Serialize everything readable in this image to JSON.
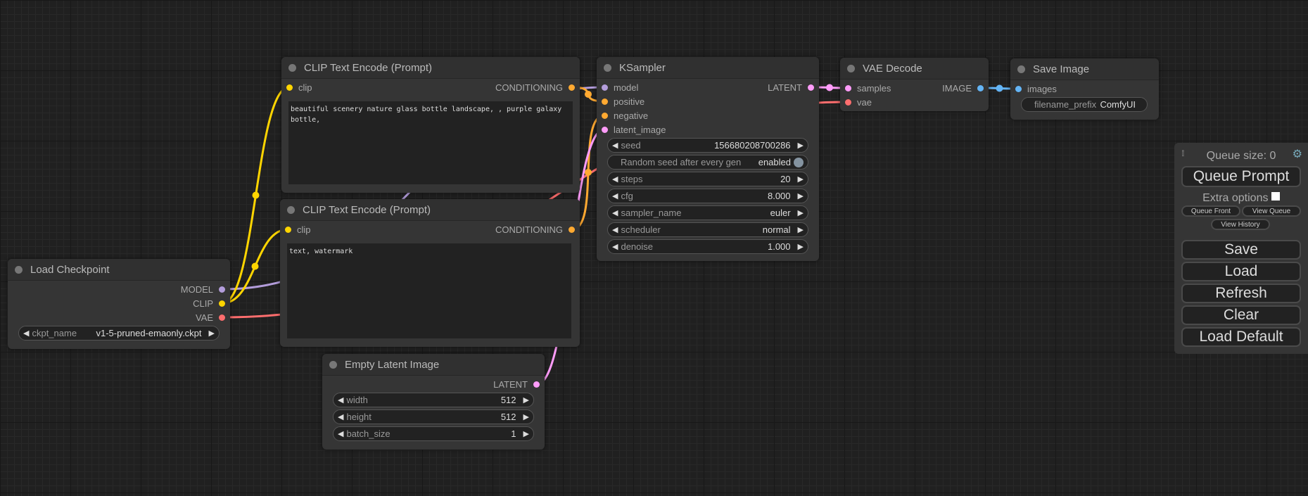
{
  "colors": {
    "MODEL": "#b39ddb",
    "CLIP": "#ffd500",
    "VAE": "#ff6e6e",
    "CONDITIONING": "#ffa931",
    "LATENT": "#ff9cf9",
    "IMAGE": "#64b5f6"
  },
  "nodes": [
    {
      "id": "clip1",
      "title": "CLIP Text Encode (Prompt)",
      "inputs": [
        {
          "name": "clip",
          "type": "CLIP"
        }
      ],
      "outputs": [
        {
          "name": "CONDITIONING",
          "type": "CONDITIONING"
        }
      ],
      "text": "beautiful scenery nature glass bottle landscape, , purple galaxy bottle,"
    },
    {
      "id": "clip2",
      "title": "CLIP Text Encode (Prompt)",
      "inputs": [
        {
          "name": "clip",
          "type": "CLIP"
        }
      ],
      "outputs": [
        {
          "name": "CONDITIONING",
          "type": "CONDITIONING"
        }
      ],
      "text": "text, watermark"
    },
    {
      "id": "ckpt",
      "title": "Load Checkpoint",
      "inputs": [],
      "outputs": [
        {
          "name": "MODEL",
          "type": "MODEL"
        },
        {
          "name": "CLIP",
          "type": "CLIP"
        },
        {
          "name": "VAE",
          "type": "VAE"
        }
      ],
      "widgets": [
        {
          "label": "ckpt_name",
          "value": "v1-5-pruned-emaonly.ckpt"
        }
      ]
    },
    {
      "id": "latent",
      "title": "Empty Latent Image",
      "inputs": [],
      "outputs": [
        {
          "name": "LATENT",
          "type": "LATENT"
        }
      ],
      "widgets": [
        {
          "label": "width",
          "value": "512"
        },
        {
          "label": "height",
          "value": "512"
        },
        {
          "label": "batch_size",
          "value": "1"
        }
      ]
    },
    {
      "id": "ksampler",
      "title": "KSampler",
      "inputs": [
        {
          "name": "model",
          "type": "MODEL"
        },
        {
          "name": "positive",
          "type": "CONDITIONING"
        },
        {
          "name": "negative",
          "type": "CONDITIONING"
        },
        {
          "name": "latent_image",
          "type": "LATENT"
        }
      ],
      "outputs": [
        {
          "name": "LATENT",
          "type": "LATENT"
        }
      ],
      "widgets": [
        {
          "label": "seed",
          "value": "156680208700286"
        },
        {
          "label": "Random seed after every gen",
          "value": "enabled",
          "toggle": true
        },
        {
          "label": "steps",
          "value": "20"
        },
        {
          "label": "cfg",
          "value": "8.000"
        },
        {
          "label": "sampler_name",
          "value": "euler"
        },
        {
          "label": "scheduler",
          "value": "normal"
        },
        {
          "label": "denoise",
          "value": "1.000"
        }
      ]
    },
    {
      "id": "vae",
      "title": "VAE Decode",
      "inputs": [
        {
          "name": "samples",
          "type": "LATENT"
        },
        {
          "name": "vae",
          "type": "VAE"
        }
      ],
      "outputs": [
        {
          "name": "IMAGE",
          "type": "IMAGE"
        }
      ]
    },
    {
      "id": "save",
      "title": "Save Image",
      "inputs": [
        {
          "name": "images",
          "type": "IMAGE"
        }
      ],
      "outputs": [],
      "widgets": [
        {
          "label": "filename_prefix",
          "value": "ComfyUI",
          "plain": true
        }
      ]
    }
  ],
  "links": [
    [
      "ckpt",
      0,
      "ksampler",
      0
    ],
    [
      "ckpt",
      1,
      "clip1",
      0
    ],
    [
      "ckpt",
      1,
      "clip2",
      0
    ],
    [
      "ckpt",
      2,
      "vae",
      1
    ],
    [
      "clip1",
      0,
      "ksampler",
      1
    ],
    [
      "clip2",
      0,
      "ksampler",
      2
    ],
    [
      "latent",
      0,
      "ksampler",
      3
    ],
    [
      "ksampler",
      0,
      "vae",
      0
    ],
    [
      "vae",
      0,
      "save",
      0
    ]
  ],
  "panel": {
    "queue_size": "Queue size: 0",
    "queue_prompt": "Queue Prompt",
    "extra_options": "Extra options",
    "queue_front": "Queue Front",
    "view_queue": "View Queue",
    "view_history": "View History",
    "save": "Save",
    "load": "Load",
    "refresh": "Refresh",
    "clear": "Clear",
    "load_default": "Load Default",
    "settings_icon": "gear-icon",
    "drag_icon": "drag-handle-icon"
  }
}
